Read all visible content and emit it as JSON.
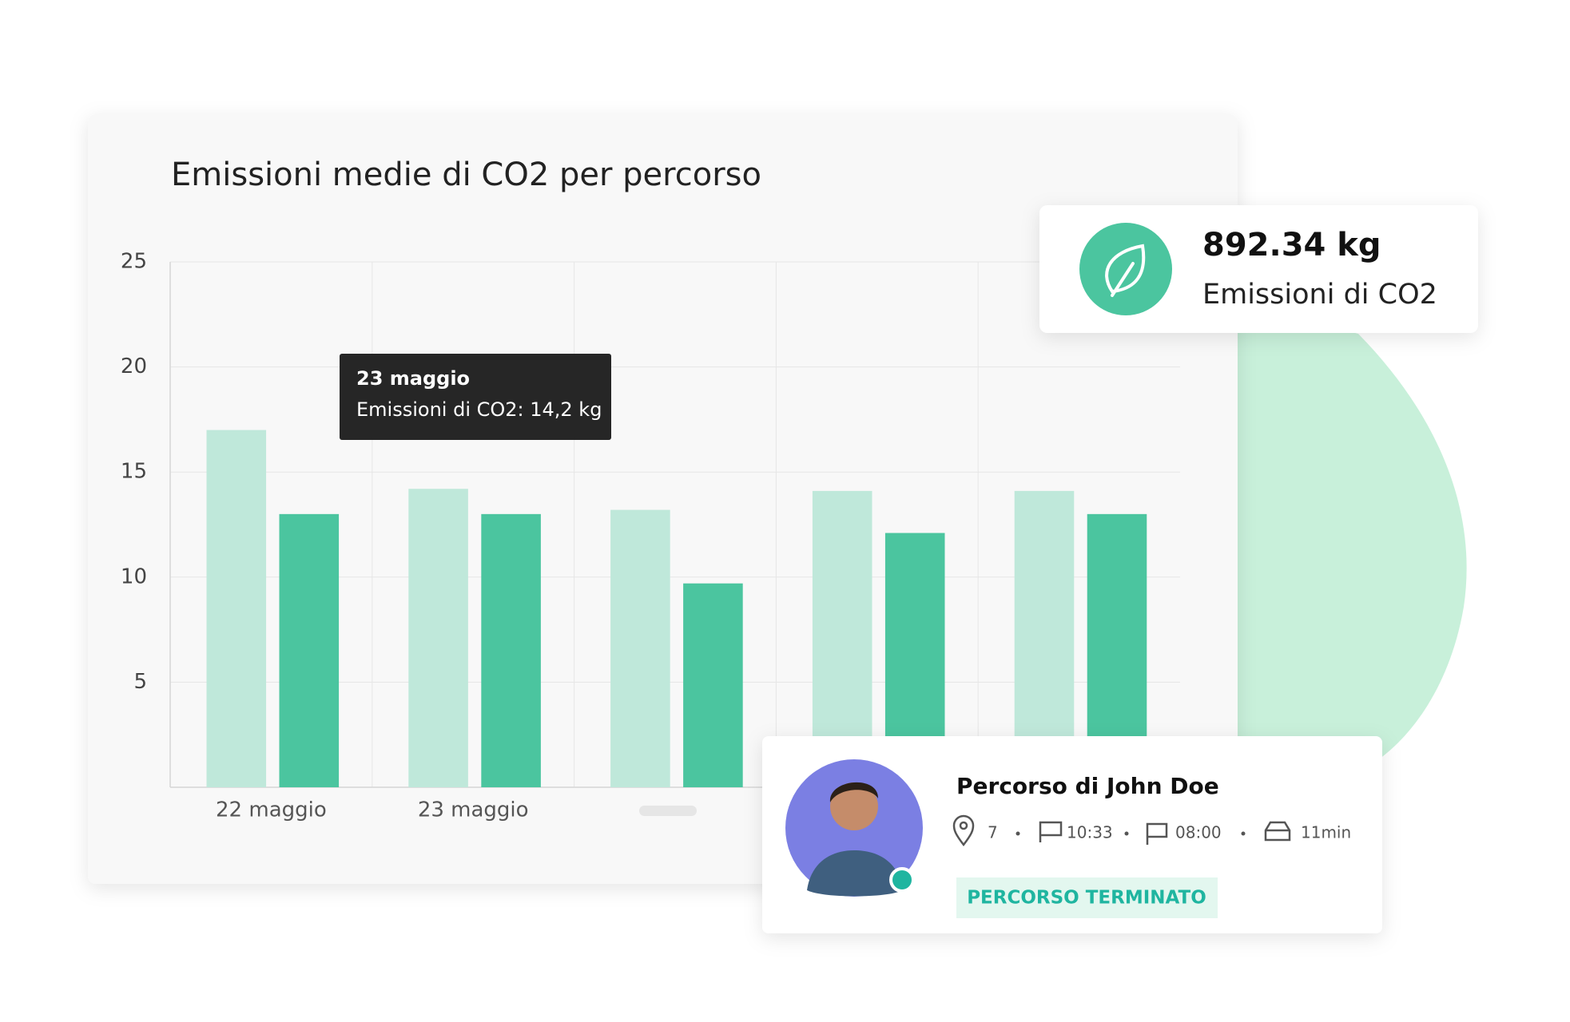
{
  "chart_data": {
    "type": "bar",
    "title": "Emissioni medie di CO2 per percorso",
    "categories": [
      "22 maggio",
      "23 maggio",
      null,
      null,
      null
    ],
    "series": [
      {
        "color": "#bfe8da",
        "values": [
          17,
          14.2,
          13.2,
          14.1,
          14.1
        ]
      },
      {
        "color": "#4bc59f",
        "values": [
          13,
          13,
          9.7,
          12.1,
          13
        ]
      }
    ],
    "ylim": [
      0,
      25
    ],
    "yticks": [
      5,
      10,
      15,
      20,
      25
    ],
    "grid": true,
    "tooltip": {
      "title": "23 maggio",
      "text": "Emissioni di CO2: 14,2 kg"
    }
  },
  "stat_card": {
    "value": "892.34 kg",
    "label": "Emissioni di CO2"
  },
  "route_card": {
    "title": "Percorso di John Doe",
    "stops": "7",
    "start": "10:33",
    "end": "08:00",
    "duration": "11min",
    "status": "PERCORSO TERMINATO"
  }
}
